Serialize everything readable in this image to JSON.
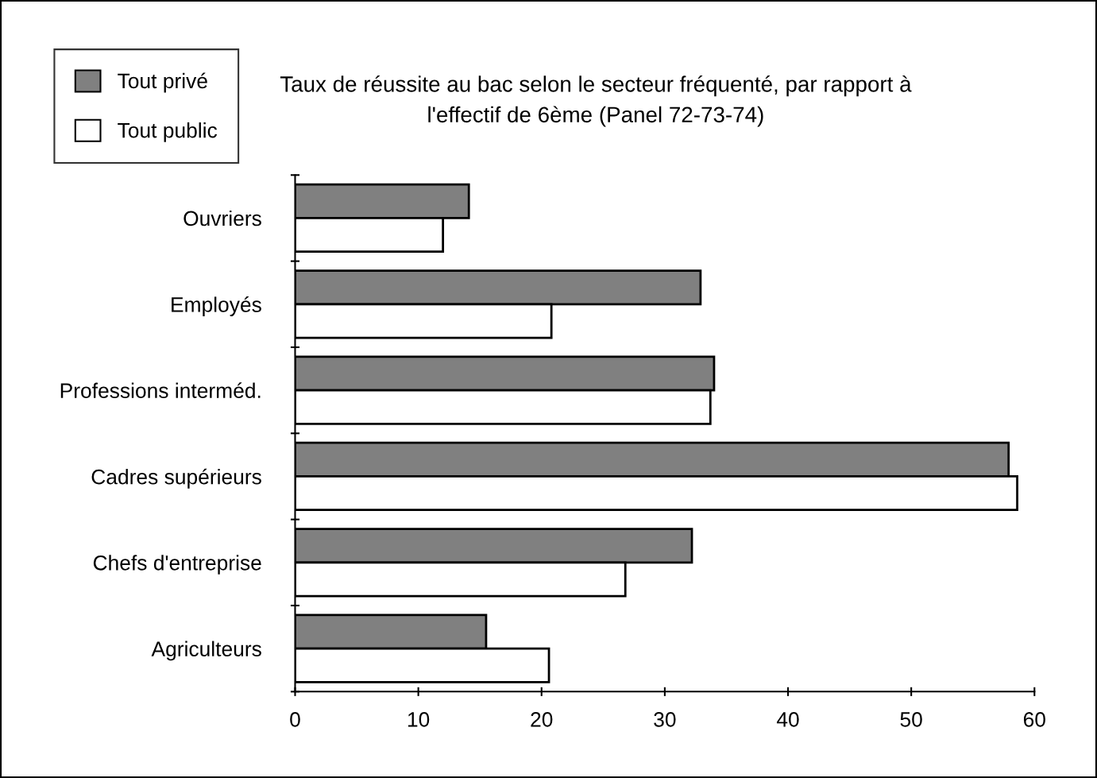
{
  "chart_data": {
    "type": "bar",
    "orientation": "horizontal",
    "title": "Taux de réussite au bac selon le secteur fréquenté, par rapport à\nl'effectif de 6ème (Panel 72-73-74)",
    "categories": [
      "Ouvriers",
      "Employés",
      "Professions interméd.",
      "Cadres supérieurs",
      "Chefs d'entreprise",
      "Agriculteurs"
    ],
    "series": [
      {
        "name": "Tout privé",
        "color": "#808080",
        "values": [
          14.1,
          32.9,
          34.0,
          57.9,
          32.2,
          15.5
        ]
      },
      {
        "name": "Tout public",
        "color": "#ffffff",
        "values": [
          12.0,
          20.8,
          33.7,
          58.6,
          26.8,
          20.6
        ]
      }
    ],
    "xlim": [
      0,
      60
    ],
    "xticks": [
      0,
      10,
      20,
      30,
      40,
      50,
      60
    ],
    "grid": false,
    "legend": "top left"
  }
}
